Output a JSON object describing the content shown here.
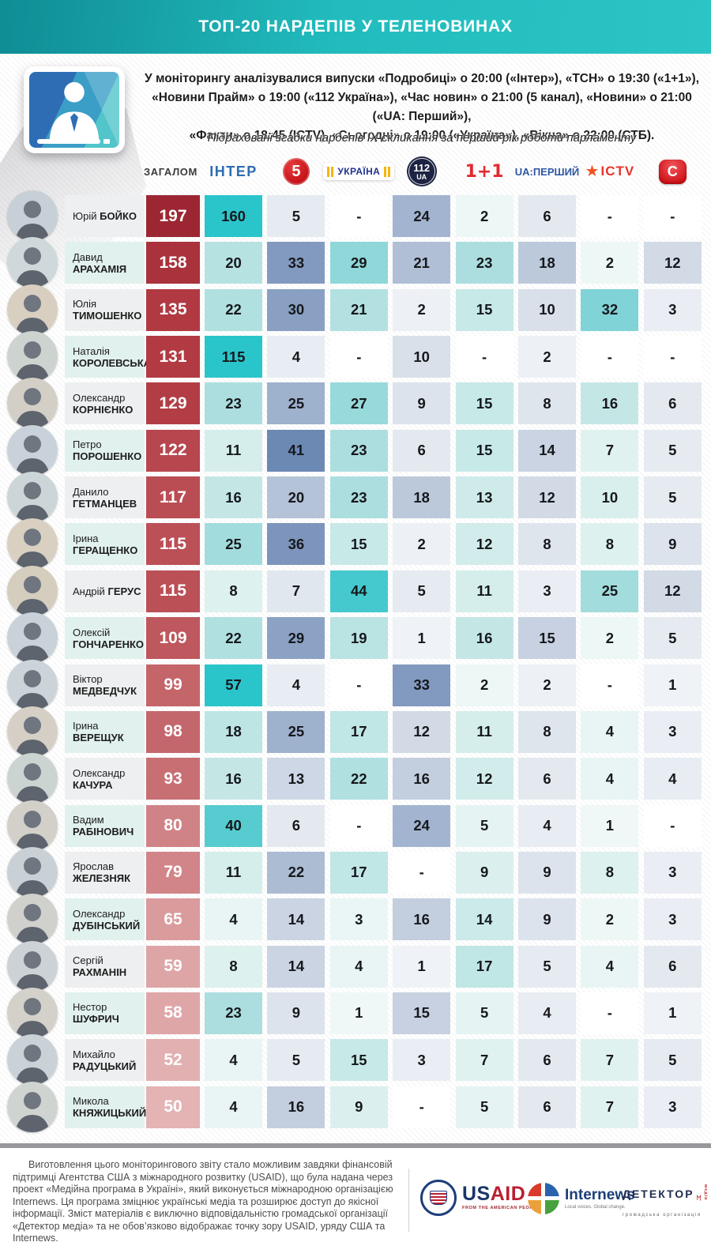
{
  "header": {
    "title": "ТОП-20 НАРДЕПІВ У ТЕЛЕНОВИНАХ",
    "intro_lines": [
      "У моніторингу аналізувалися випуски «Подробиці» о 20:00 («Інтер»), «ТСН» о 19:30 («1+1»),",
      "«Новини Прайм» о 19:00 («112 Україна»), «Час новин» о 21:00 (5 канал), «Новини» о 21:00 («UA: Перший»),",
      "«Факти» о 18:45 (ICTV), «Сьогодні» о 19:00 («Україна»), «Вікна» о 22:00 (СТБ)."
    ],
    "subtitle": "Підраховані згадки нардепів IX скликання за перший рік роботи парламенту"
  },
  "legend": {
    "total_label": "ЗАГАЛОМ",
    "channels": [
      {
        "id": "inter",
        "label": "ІНТЕР",
        "color": "#2d6cb3",
        "family": "teal"
      },
      {
        "id": "5kanal",
        "label": "5",
        "color": "#c40f16",
        "family": "blue"
      },
      {
        "id": "ukraina",
        "label": "УКРАЇНА",
        "color": "#20328f",
        "accent": "#f6b40e",
        "family": "teal"
      },
      {
        "id": "112ua",
        "label": "112",
        "sublabel": "UA",
        "color": "#1d2342",
        "family": "blue"
      },
      {
        "id": "1plus1",
        "label": "1+1",
        "color": "#e02b31",
        "family": "teal"
      },
      {
        "id": "uapershyi",
        "label": "UA:ПЕРШИЙ",
        "color": "#3056a4",
        "family": "blue"
      },
      {
        "id": "ictv",
        "label": "ICTV",
        "color": "#e8342c",
        "star_color": "#f05123",
        "family": "teal"
      },
      {
        "id": "stb",
        "label": "С",
        "color": "#cf1219",
        "family": "blue"
      }
    ]
  },
  "chart_data": {
    "type": "heatmap",
    "title": "ТОП-20 НАРДЕПІВ У ТЕЛЕНОВИНАХ",
    "columns": [
      "ЗАГАЛОМ",
      "ІНТЕР",
      "5 канал",
      "УКРАЇНА",
      "112 Україна",
      "1+1",
      "UA:ПЕРШИЙ",
      "ICTV",
      "СТБ"
    ],
    "empty_marker": "-",
    "color_families": {
      "total": "red",
      "columns_odd": "teal",
      "columns_even": "blue"
    },
    "heat_colors": {
      "total_max": "#9c2733",
      "total_min": "#e4b3b4",
      "teal_max": "#2ac5cb",
      "blue_max": "#5d7fae"
    },
    "rows": [
      {
        "first": "Юрій",
        "last": "БОЙКО",
        "inline": true,
        "total": 197,
        "values": [
          160,
          5,
          null,
          24,
          2,
          6,
          null,
          null
        ]
      },
      {
        "first": "Давид",
        "last": "АРАХАМІЯ",
        "inline": false,
        "total": 158,
        "values": [
          20,
          33,
          29,
          21,
          23,
          18,
          2,
          12
        ]
      },
      {
        "first": "Юлія",
        "last": "ТИМОШЕНКО",
        "inline": false,
        "total": 135,
        "values": [
          22,
          30,
          21,
          2,
          15,
          10,
          32,
          3
        ]
      },
      {
        "first": "Наталія",
        "last": "КОРОЛЕВСЬКА",
        "inline": false,
        "total": 131,
        "values": [
          115,
          4,
          null,
          10,
          null,
          2,
          null,
          null
        ]
      },
      {
        "first": "Олександр",
        "last": "КОРНІЄНКО",
        "inline": false,
        "total": 129,
        "values": [
          23,
          25,
          27,
          9,
          15,
          8,
          16,
          6
        ]
      },
      {
        "first": "Петро",
        "last": "ПОРОШЕНКО",
        "inline": false,
        "total": 122,
        "values": [
          11,
          41,
          23,
          6,
          15,
          14,
          7,
          5
        ]
      },
      {
        "first": "Данило",
        "last": "ГЕТМАНЦЕВ",
        "inline": false,
        "total": 117,
        "values": [
          16,
          20,
          23,
          18,
          13,
          12,
          10,
          5
        ]
      },
      {
        "first": "Ірина",
        "last": "ГЕРАЩЕНКО",
        "inline": false,
        "total": 115,
        "values": [
          25,
          36,
          15,
          2,
          12,
          8,
          8,
          9
        ]
      },
      {
        "first": "Андрій",
        "last": "ГЕРУС",
        "inline": true,
        "total": 115,
        "values": [
          8,
          7,
          44,
          5,
          11,
          3,
          25,
          12
        ]
      },
      {
        "first": "Олексій",
        "last": "ГОНЧАРЕНКО",
        "inline": false,
        "total": 109,
        "values": [
          22,
          29,
          19,
          1,
          16,
          15,
          2,
          5
        ]
      },
      {
        "first": "Віктор",
        "last": "МЕДВЕДЧУК",
        "inline": false,
        "total": 99,
        "values": [
          57,
          4,
          null,
          33,
          2,
          2,
          null,
          1
        ]
      },
      {
        "first": "Ірина",
        "last": "ВЕРЕЩУК",
        "inline": true,
        "total": 98,
        "values": [
          18,
          25,
          17,
          12,
          11,
          8,
          4,
          3
        ]
      },
      {
        "first": "Олександр",
        "last": "КАЧУРА",
        "inline": false,
        "total": 93,
        "values": [
          16,
          13,
          22,
          16,
          12,
          6,
          4,
          4
        ]
      },
      {
        "first": "Вадим",
        "last": "РАБІНОВИЧ",
        "inline": false,
        "total": 80,
        "values": [
          40,
          6,
          null,
          24,
          5,
          4,
          1,
          null
        ]
      },
      {
        "first": "Ярослав",
        "last": "ЖЕЛЕЗНЯК",
        "inline": false,
        "total": 79,
        "values": [
          11,
          22,
          17,
          null,
          9,
          9,
          8,
          3
        ]
      },
      {
        "first": "Олександр",
        "last": "ДУБІНСЬКИЙ",
        "inline": false,
        "total": 65,
        "values": [
          4,
          14,
          3,
          16,
          14,
          9,
          2,
          3
        ]
      },
      {
        "first": "Сергій",
        "last": "РАХМАНІН",
        "inline": false,
        "total": 59,
        "values": [
          8,
          14,
          4,
          1,
          17,
          5,
          4,
          6
        ]
      },
      {
        "first": "Нестор",
        "last": "ШУФРИЧ",
        "inline": true,
        "total": 58,
        "values": [
          23,
          9,
          1,
          15,
          5,
          4,
          null,
          1
        ]
      },
      {
        "first": "Михайло",
        "last": "РАДУЦЬКИЙ",
        "inline": false,
        "total": 52,
        "values": [
          4,
          5,
          15,
          3,
          7,
          6,
          7,
          5
        ]
      },
      {
        "first": "Микола",
        "last": "КНЯЖИЦЬКИЙ",
        "inline": false,
        "total": 50,
        "values": [
          4,
          16,
          9,
          null,
          5,
          6,
          7,
          3
        ]
      }
    ]
  },
  "footer": {
    "text": "Виготовлення цього моніторингового звіту стало можливим завдяки фінансовій підтримці Агентства США з міжнародного розвитку (USAID), що була надана через проект «Медійна програма в Україні», який виконується міжнародною організацією Internews. Ця програма зміцнює українські медіа та розширює доступ до якісної інформації.  Зміст матеріалів є виключно відповідальністю громадської організації «Детектор медіа» та не обов’язково відображає точку зору USAID, уряду США та Internews.",
    "usaid": {
      "us": "US",
      "aid": "AID",
      "tagline": "FROM THE AMERICAN PEOPLE"
    },
    "internews": {
      "name": "Internews",
      "tagline": "Local voices. Global change."
    },
    "detector": {
      "name": "ДЕТЕКТОР",
      "m": "М",
      "media": "медіа",
      "tagline": "громадська організація"
    }
  },
  "colors": {
    "banner_teal_left": "#0f8d95",
    "banner_teal_right": "#2cc5c5",
    "name_cell_odd": "#edeff0",
    "name_cell_even": "#e1f1ee",
    "footer_bar": "#97989c"
  }
}
